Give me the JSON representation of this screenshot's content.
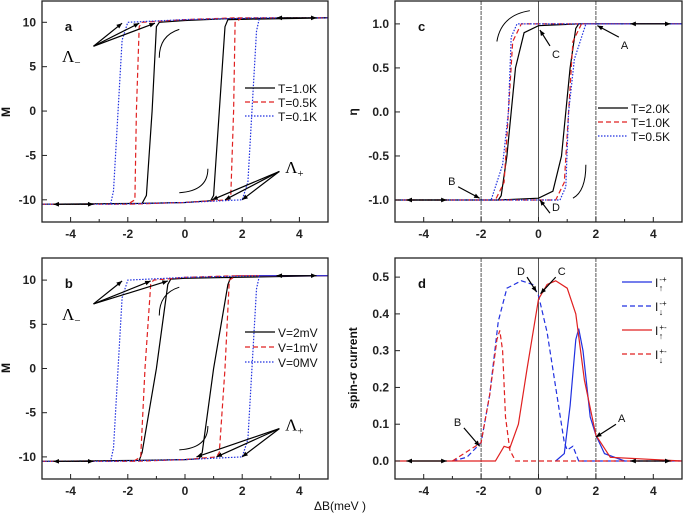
{
  "chart_data": [
    {
      "id": "a",
      "type": "line",
      "panel_label": "a",
      "xlabel": "",
      "ylabel": "M",
      "xlim": [
        -5,
        5
      ],
      "ylim": [
        -12.5,
        12.4
      ],
      "xticks": [
        -4,
        -2,
        0,
        2,
        4
      ],
      "yticks": [
        -10,
        -5,
        0,
        5,
        10
      ],
      "grid": false,
      "legend_position": "right-upper",
      "annotations": {
        "lambda_minus": "Λ",
        "lambda_minus_sub": "−",
        "lambda_plus": "Λ",
        "lambda_plus_sub": "+"
      },
      "series": [
        {
          "name": "T=1.0K",
          "color": "#000000",
          "dash": "solid",
          "points": [
            [
              -5,
              -10.5
            ],
            [
              -1.5,
              -10.4
            ],
            [
              0,
              -10.3
            ],
            [
              0.9,
              -10.1
            ],
            [
              1.0,
              -9.5
            ],
            [
              1.2,
              0
            ],
            [
              1.4,
              9.5
            ],
            [
              1.5,
              10.3
            ],
            [
              5,
              10.5
            ],
            [
              1.4,
              10.4
            ],
            [
              0,
              10.2
            ],
            [
              -0.9,
              10.0
            ],
            [
              -1.0,
              9.5
            ],
            [
              -1.15,
              0
            ],
            [
              -1.35,
              -9.5
            ],
            [
              -1.5,
              -10.4
            ],
            [
              -5,
              -10.5
            ]
          ]
        },
        {
          "name": "T=0.5K",
          "color": "#e02020",
          "dash": "dashed",
          "points": [
            [
              -5,
              -10.5
            ],
            [
              -2,
              -10.5
            ],
            [
              0,
              -10.3
            ],
            [
              1.5,
              -10
            ],
            [
              1.6,
              -9.5
            ],
            [
              1.7,
              0
            ],
            [
              1.75,
              10
            ],
            [
              2,
              10.5
            ],
            [
              5,
              10.5
            ],
            [
              1.7,
              10.5
            ],
            [
              0,
              10.3
            ],
            [
              -1.5,
              10
            ],
            [
              -1.6,
              9.5
            ],
            [
              -1.7,
              0
            ],
            [
              -1.75,
              -10
            ],
            [
              -2,
              -10.5
            ]
          ]
        },
        {
          "name": "T=0.1K",
          "color": "#2030e0",
          "dash": "dotted",
          "points": [
            [
              -5,
              -10.5
            ],
            [
              -2.6,
              -10.5
            ],
            [
              0,
              -10.3
            ],
            [
              2,
              -10
            ],
            [
              2.2,
              -8
            ],
            [
              2.5,
              9
            ],
            [
              2.6,
              10.5
            ],
            [
              5,
              10.5
            ],
            [
              2.6,
              10.5
            ],
            [
              0,
              10.3
            ],
            [
              -2,
              10
            ],
            [
              -2.2,
              8
            ],
            [
              -2.5,
              -9
            ],
            [
              -2.6,
              -10.5
            ]
          ]
        }
      ]
    },
    {
      "id": "b",
      "type": "line",
      "panel_label": "b",
      "xlabel": "ΔB(meV )",
      "ylabel": "M",
      "xlim": [
        -5,
        5
      ],
      "ylim": [
        -12.5,
        12.5
      ],
      "xticks": [
        -4,
        -2,
        0,
        2,
        4
      ],
      "yticks": [
        -10,
        -5,
        0,
        5,
        10
      ],
      "grid": false,
      "legend_position": "right-upper",
      "annotations": {
        "lambda_minus": "Λ",
        "lambda_minus_sub": "−",
        "lambda_plus": "Λ",
        "lambda_plus_sub": "+"
      },
      "series": [
        {
          "name": "V=2mV",
          "color": "#000000",
          "dash": "solid",
          "points": [
            [
              -5,
              -10.5
            ],
            [
              -1.6,
              -10.4
            ],
            [
              0,
              -10.3
            ],
            [
              0.5,
              -10.2
            ],
            [
              0.6,
              -9.5
            ],
            [
              1.0,
              0
            ],
            [
              1.5,
              9.5
            ],
            [
              1.6,
              10.3
            ],
            [
              5,
              10.5
            ],
            [
              1.6,
              10.3
            ],
            [
              0,
              10.2
            ],
            [
              -0.5,
              10.1
            ],
            [
              -0.6,
              9.5
            ],
            [
              -1.0,
              0
            ],
            [
              -1.5,
              -9.5
            ],
            [
              -1.6,
              -10.4
            ],
            [
              -5,
              -10.5
            ]
          ]
        },
        {
          "name": "V=1mV",
          "color": "#e02020",
          "dash": "dashed",
          "points": [
            [
              -5,
              -10.5
            ],
            [
              -1.8,
              -10.5
            ],
            [
              0,
              -10.3
            ],
            [
              1.1,
              -10
            ],
            [
              1.2,
              -9.5
            ],
            [
              1.4,
              0
            ],
            [
              1.55,
              10
            ],
            [
              1.8,
              10.5
            ],
            [
              5,
              10.5
            ],
            [
              1.8,
              10.5
            ],
            [
              0,
              10.3
            ],
            [
              -1.1,
              10
            ],
            [
              -1.2,
              9.5
            ],
            [
              -1.4,
              0
            ],
            [
              -1.55,
              -10
            ],
            [
              -1.8,
              -10.5
            ]
          ]
        },
        {
          "name": "V=0MV",
          "color": "#2030e0",
          "dash": "dotted",
          "points": [
            [
              -5,
              -10.5
            ],
            [
              -2.6,
              -10.5
            ],
            [
              0,
              -10.3
            ],
            [
              2,
              -10
            ],
            [
              2.2,
              -8
            ],
            [
              2.5,
              9
            ],
            [
              2.6,
              10.5
            ],
            [
              5,
              10.5
            ],
            [
              2.6,
              10.5
            ],
            [
              0,
              10.3
            ],
            [
              -2,
              10
            ],
            [
              -2.2,
              8
            ],
            [
              -2.5,
              -9
            ],
            [
              -2.6,
              -10.5
            ]
          ]
        }
      ]
    },
    {
      "id": "c",
      "type": "line",
      "panel_label": "c",
      "xlabel": "",
      "ylabel": "η",
      "xlim": [
        -5,
        5
      ],
      "ylim": [
        -1.25,
        1.26
      ],
      "xticks": [
        -4,
        -2,
        0,
        2,
        4
      ],
      "yticks": [
        -1.0,
        -0.5,
        0.0,
        0.5,
        1.0
      ],
      "ytick_labels": [
        "-1.0",
        "-0.5",
        "0.0",
        "0.5",
        "1.0"
      ],
      "vlines": [
        -2,
        0,
        2
      ],
      "grid": false,
      "legend_position": "right-middle",
      "annotations": {
        "A": "A",
        "B": "B",
        "C": "C",
        "D": "D"
      },
      "series": [
        {
          "name": "T=2.0K",
          "color": "#000000",
          "dash": "solid",
          "points": [
            [
              -5,
              -1
            ],
            [
              -1.4,
              -1
            ],
            [
              0,
              -0.98
            ],
            [
              0.5,
              -0.9
            ],
            [
              0.8,
              -0.5
            ],
            [
              0.95,
              0
            ],
            [
              1.1,
              0.5
            ],
            [
              1.3,
              0.95
            ],
            [
              1.4,
              1
            ],
            [
              5,
              1
            ],
            [
              1.4,
              1
            ],
            [
              0,
              0.98
            ],
            [
              -0.5,
              0.9
            ],
            [
              -0.8,
              0.5
            ],
            [
              -0.95,
              0
            ],
            [
              -1.1,
              -0.5
            ],
            [
              -1.3,
              -0.95
            ],
            [
              -1.4,
              -1
            ]
          ]
        },
        {
          "name": "T=1.0K",
          "color": "#e02020",
          "dash": "dashed",
          "points": [
            [
              -5,
              -1
            ],
            [
              -1.5,
              -1
            ],
            [
              0.6,
              -1
            ],
            [
              0.9,
              -0.8
            ],
            [
              1.05,
              0
            ],
            [
              1.2,
              0.8
            ],
            [
              1.5,
              1
            ],
            [
              5,
              1
            ],
            [
              1.5,
              1
            ],
            [
              -0.6,
              1
            ],
            [
              -0.9,
              0.8
            ],
            [
              -1.05,
              0
            ],
            [
              -1.2,
              -0.8
            ],
            [
              -1.5,
              -1
            ]
          ]
        },
        {
          "name": "T=0.5K",
          "color": "#2030e0",
          "dash": "dotted",
          "points": [
            [
              -5,
              -1
            ],
            [
              -1.65,
              -1
            ],
            [
              0.75,
              -1
            ],
            [
              0.95,
              -0.85
            ],
            [
              1.05,
              0
            ],
            [
              1.25,
              0.6
            ],
            [
              1.65,
              1
            ],
            [
              5,
              1
            ],
            [
              1.65,
              1
            ],
            [
              -0.75,
              1
            ],
            [
              -0.95,
              0.85
            ],
            [
              -1.05,
              0
            ],
            [
              -1.25,
              -0.6
            ],
            [
              -1.65,
              -1
            ]
          ]
        }
      ]
    },
    {
      "id": "d",
      "type": "line",
      "panel_label": "d",
      "xlabel": "",
      "ylabel": "spin-σ current",
      "xlim": [
        -5,
        5
      ],
      "ylim": [
        -0.049,
        0.552
      ],
      "xticks": [
        -4,
        -2,
        0,
        2,
        4
      ],
      "yticks": [
        0.0,
        0.1,
        0.2,
        0.3,
        0.4,
        0.5
      ],
      "ytick_labels": [
        "0.0",
        "0.1",
        "0.2",
        "0.3",
        "0.4",
        "0.5"
      ],
      "vlines": [
        -2,
        0,
        2
      ],
      "grid": false,
      "legend_position": "top-right",
      "annotations": {
        "A": "A",
        "B": "B",
        "C": "C",
        "D": "D"
      },
      "series": [
        {
          "name": "I",
          "sub": "↑",
          "sup": "-+",
          "color": "#2030e0",
          "dash": "solid",
          "points": [
            [
              0.6,
              0
            ],
            [
              0.9,
              0.02
            ],
            [
              1.1,
              0.15
            ],
            [
              1.3,
              0.33
            ],
            [
              1.4,
              0.36
            ],
            [
              1.55,
              0.3
            ],
            [
              1.8,
              0.12
            ],
            [
              2,
              0.07
            ],
            [
              2.3,
              0.02
            ],
            [
              3,
              0
            ]
          ]
        },
        {
          "name": "I",
          "sub": "↓",
          "sup": "-+",
          "color": "#2030e0",
          "dash": "dashed",
          "points": [
            [
              -3,
              0
            ],
            [
              -2.5,
              0.01
            ],
            [
              -2,
              0.05
            ],
            [
              -1.7,
              0.18
            ],
            [
              -1.4,
              0.38
            ],
            [
              -1.1,
              0.47
            ],
            [
              -0.6,
              0.49
            ],
            [
              -0.2,
              0.48
            ],
            [
              0,
              0.45
            ],
            [
              0.3,
              0.35
            ],
            [
              0.6,
              0.2
            ],
            [
              0.9,
              0.05
            ],
            [
              1.0,
              0.03
            ],
            [
              1.2,
              0.04
            ],
            [
              1.4,
              0.0
            ],
            [
              5,
              0
            ]
          ]
        },
        {
          "name": "I",
          "sub": "↑",
          "sup": "+-",
          "color": "#e02020",
          "dash": "solid",
          "points": [
            [
              -5,
              0
            ],
            [
              -1.5,
              0
            ],
            [
              -1.2,
              0.04
            ],
            [
              -1.0,
              0.035
            ],
            [
              -0.7,
              0.1
            ],
            [
              -0.4,
              0.25
            ],
            [
              0,
              0.44
            ],
            [
              0.3,
              0.48
            ],
            [
              0.6,
              0.49
            ],
            [
              1,
              0.47
            ],
            [
              1.3,
              0.4
            ],
            [
              1.6,
              0.22
            ],
            [
              2,
              0.07
            ],
            [
              2.5,
              0.01
            ],
            [
              5,
              0
            ]
          ]
        },
        {
          "name": "I",
          "sub": "↓",
          "sup": "+-",
          "color": "#e02020",
          "dash": "dashed",
          "points": [
            [
              -3,
              0
            ],
            [
              -2,
              0.05
            ],
            [
              -1.7,
              0.18
            ],
            [
              -1.45,
              0.33
            ],
            [
              -1.35,
              0.355
            ],
            [
              -1.25,
              0.3
            ],
            [
              -1.15,
              0.12
            ],
            [
              -1.0,
              0.03
            ],
            [
              -0.8,
              0
            ],
            [
              5,
              0
            ]
          ]
        }
      ]
    }
  ],
  "shared_xlabel": "ΔB(meV )"
}
